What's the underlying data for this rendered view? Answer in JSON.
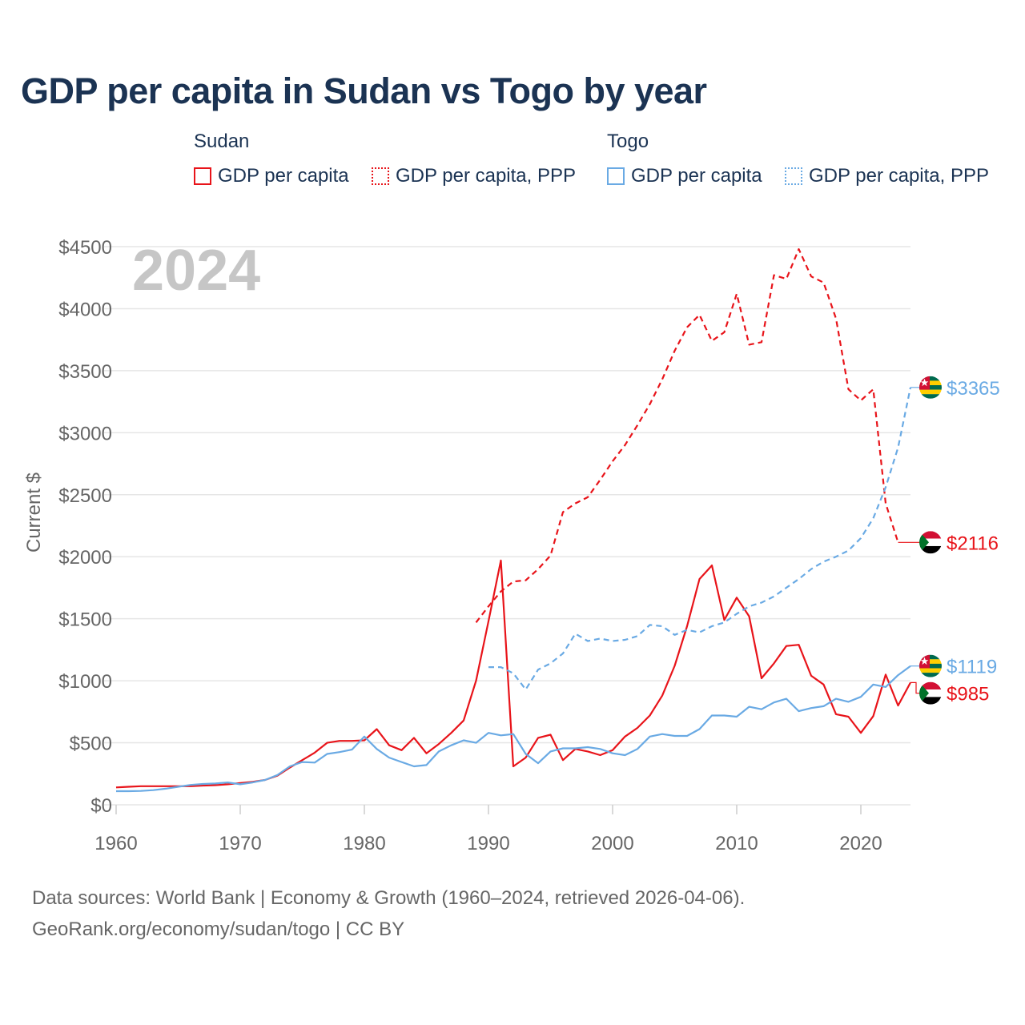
{
  "title": "GDP per capita in Sudan vs Togo by year",
  "legend": {
    "groups": [
      {
        "name": "Sudan",
        "items": [
          "GDP per capita",
          "GDP per capita, PPP"
        ]
      },
      {
        "name": "Togo",
        "items": [
          "GDP per capita",
          "GDP per capita, PPP"
        ]
      }
    ]
  },
  "footer": {
    "line1": "Data sources: World Bank | Economy & Growth (1960–2024, retrieved 2026-04-06).",
    "line2": "GeoRank.org/economy/sudan/togo | CC BY"
  },
  "colors": {
    "sudan": "#e8141a",
    "togo": "#6aaae4",
    "grid": "#e6e6e6",
    "axis_text": "#666666",
    "watermark": "#c6c6c6"
  },
  "chart_data": {
    "type": "line",
    "year_watermark": "2024",
    "ylabel": "Current $",
    "xlabel": "",
    "xlim": [
      1960,
      2024
    ],
    "ylim": [
      0,
      4500
    ],
    "x_ticks": [
      1960,
      1970,
      1980,
      1990,
      2000,
      2010,
      2020
    ],
    "x_tick_labels": [
      "1960",
      "1970",
      "1980",
      "1990",
      "2000",
      "2010",
      "2020"
    ],
    "y_ticks": [
      0,
      500,
      1000,
      1500,
      2000,
      2500,
      3000,
      3500,
      4000,
      4500
    ],
    "y_tick_labels": [
      "$0",
      "$500",
      "$1000",
      "$1500",
      "$2000",
      "$2500",
      "$3000",
      "$3500",
      "$4000",
      "$4500"
    ],
    "series": [
      {
        "name": "Sudan GDP per capita",
        "country": "Sudan",
        "style": "solid",
        "color": "#e8141a",
        "start_year": 1960,
        "values": [
          140,
          145,
          150,
          150,
          150,
          150,
          150,
          155,
          158,
          165,
          175,
          185,
          200,
          235,
          300,
          360,
          420,
          500,
          515,
          515,
          520,
          610,
          480,
          440,
          540,
          415,
          490,
          580,
          680,
          1000,
          1480,
          1970,
          310,
          380,
          540,
          565,
          360,
          450,
          430,
          400,
          440,
          550,
          620,
          720,
          880,
          1120,
          1440,
          1820,
          1930,
          1490,
          1670,
          1520,
          1020,
          1140,
          1280,
          1290,
          1040,
          970,
          730,
          710,
          580,
          715,
          1050,
          800,
          985
        ],
        "end_label": "$985"
      },
      {
        "name": "Sudan GDP per capita, PPP",
        "country": "Sudan",
        "style": "dashed",
        "color": "#e8141a",
        "start_year": 1989,
        "values": [
          1470,
          1600,
          1720,
          1800,
          1810,
          1900,
          2010,
          2360,
          2430,
          2480,
          2620,
          2770,
          2900,
          3060,
          3230,
          3430,
          3660,
          3850,
          3950,
          3740,
          3810,
          4120,
          3710,
          3730,
          4270,
          4240,
          4480,
          4260,
          4210,
          3920,
          3350,
          3260,
          3350,
          2430,
          2116
        ],
        "end_label": "$2116"
      },
      {
        "name": "Togo GDP per capita",
        "country": "Togo",
        "style": "solid",
        "color": "#6aaae4",
        "start_year": 1960,
        "values": [
          110,
          110,
          112,
          118,
          130,
          145,
          160,
          168,
          172,
          180,
          165,
          180,
          200,
          240,
          310,
          345,
          340,
          410,
          425,
          445,
          550,
          450,
          380,
          345,
          310,
          320,
          430,
          480,
          520,
          500,
          580,
          560,
          570,
          410,
          335,
          430,
          455,
          455,
          465,
          450,
          415,
          400,
          450,
          550,
          570,
          555,
          555,
          610,
          720,
          720,
          710,
          790,
          770,
          825,
          855,
          755,
          780,
          795,
          855,
          830,
          870,
          970,
          950,
          1045,
          1119
        ],
        "end_label": "$1119"
      },
      {
        "name": "Togo GDP per capita, PPP",
        "country": "Togo",
        "style": "dashed",
        "color": "#6aaae4",
        "start_year": 1990,
        "values": [
          1110,
          1110,
          1060,
          930,
          1090,
          1140,
          1220,
          1380,
          1320,
          1340,
          1320,
          1330,
          1360,
          1450,
          1440,
          1370,
          1410,
          1390,
          1440,
          1470,
          1540,
          1600,
          1630,
          1680,
          1750,
          1820,
          1900,
          1960,
          2000,
          2050,
          2150,
          2310,
          2560,
          2880,
          3365
        ],
        "end_label": "$3365"
      }
    ]
  }
}
